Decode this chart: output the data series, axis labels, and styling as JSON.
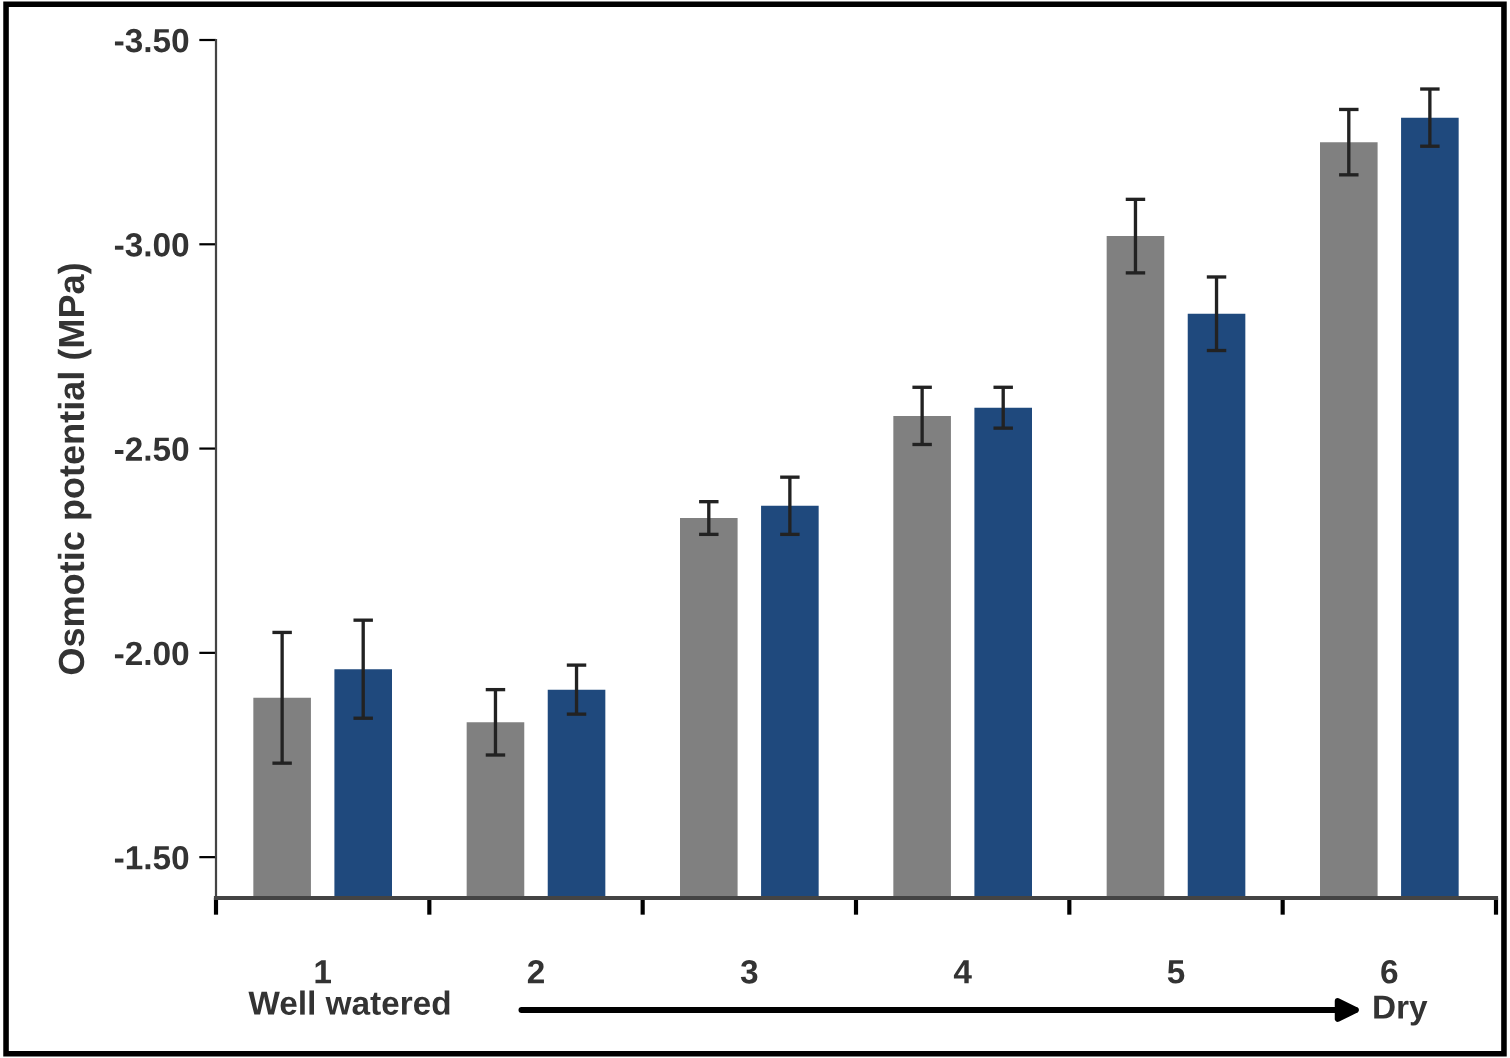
{
  "chart_data": {
    "type": "bar",
    "ylabel": "Osmotic potential (MPa)",
    "categories": [
      "1",
      "2",
      "3",
      "4",
      "5",
      "6"
    ],
    "series": [
      {
        "color": "#808080",
        "values": [
          -1.89,
          -1.83,
          -2.33,
          -2.58,
          -3.02,
          -3.25
        ],
        "errors": [
          0.16,
          0.08,
          0.04,
          0.07,
          0.09,
          0.08
        ]
      },
      {
        "color": "#1f497d",
        "values": [
          -1.96,
          -1.91,
          -2.36,
          -2.6,
          -2.83,
          -3.31
        ],
        "errors": [
          0.12,
          0.06,
          0.07,
          0.05,
          0.09,
          0.07
        ]
      }
    ],
    "ylim": [
      -1.4,
      -3.5
    ],
    "yticks": [
      {
        "value": -3.5,
        "label": "-3.50"
      },
      {
        "value": -3.0,
        "label": "-3.00"
      },
      {
        "value": -2.5,
        "label": "-2.50"
      },
      {
        "value": -2.0,
        "label": "-2.00"
      },
      {
        "value": -1.5,
        "label": "-1.50"
      }
    ],
    "grid": false,
    "annotations": [
      "Well watered",
      "Dry"
    ]
  }
}
